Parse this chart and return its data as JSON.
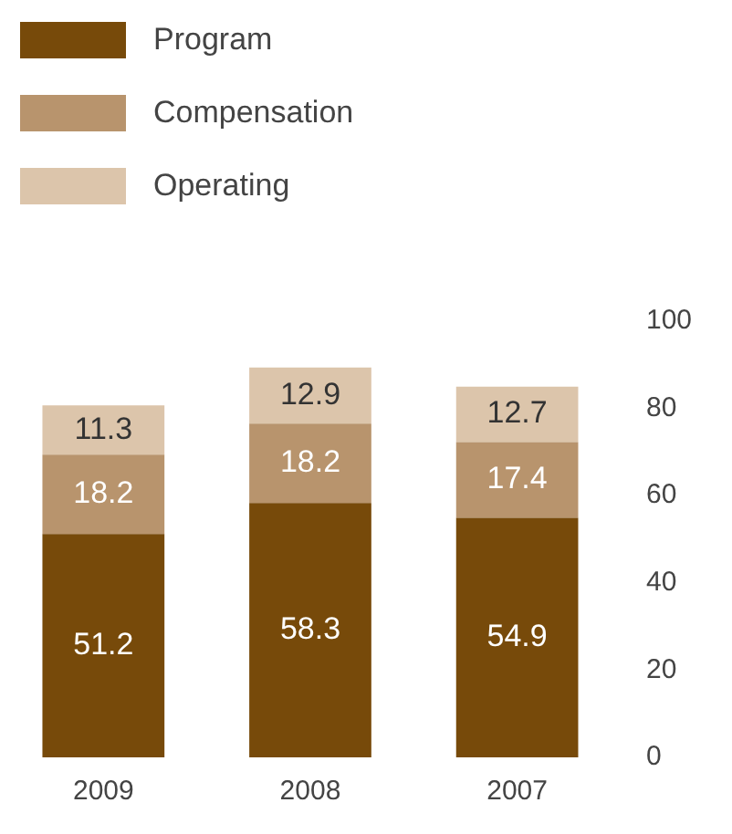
{
  "chart_data": {
    "type": "bar",
    "stacked": true,
    "categories": [
      "2009",
      "2008",
      "2007"
    ],
    "series": [
      {
        "name": "Program",
        "color": "#774a0a",
        "values": [
          51.2,
          58.3,
          54.9
        ]
      },
      {
        "name": "Compensation",
        "color": "#b8946d",
        "values": [
          18.2,
          18.2,
          17.4
        ]
      },
      {
        "name": "Operating",
        "color": "#dcc5ab",
        "values": [
          11.3,
          12.9,
          12.7
        ]
      }
    ],
    "ylim": [
      0,
      100
    ],
    "yticks": [
      0,
      20,
      40,
      60,
      80,
      100
    ],
    "grid": false,
    "legend": "top left",
    "data_labels": true
  }
}
